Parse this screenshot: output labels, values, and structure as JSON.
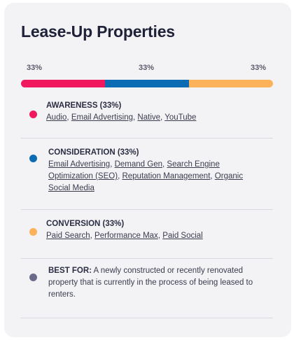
{
  "card": {
    "title": "Lease-Up Properties",
    "percent_labels": [
      "33%",
      "33%",
      "33%"
    ],
    "bar_segments": [
      {
        "color": "#f0185f",
        "share": 0.3333
      },
      {
        "color": "#0b6bb3",
        "share": 0.3333
      },
      {
        "color": "#fbb25a",
        "share": 0.3334
      }
    ]
  },
  "sections": [
    {
      "heading": "AWARENESS (33%)",
      "color": "#f0185f",
      "links": [
        "Audio",
        "Email Advertising",
        "Native",
        "YouTube"
      ]
    },
    {
      "heading": "CONSIDERATION (33%)",
      "color": "#0b6bb3",
      "links": [
        "Email Advertising",
        "Demand Gen",
        "Search Engine Optimization (SEO)",
        "Reputation Management",
        "Organic Social Media"
      ]
    },
    {
      "heading": "CONVERSION (33%)",
      "color": "#fbb25a",
      "links": [
        "Paid Search",
        "Performance Max",
        "Paid Social"
      ]
    }
  ],
  "best_for": {
    "label": "BEST FOR:",
    "color": "#6a6b8c",
    "text": " A newly constructed or recently renovated property that is currently in the process of being leased to renters."
  }
}
